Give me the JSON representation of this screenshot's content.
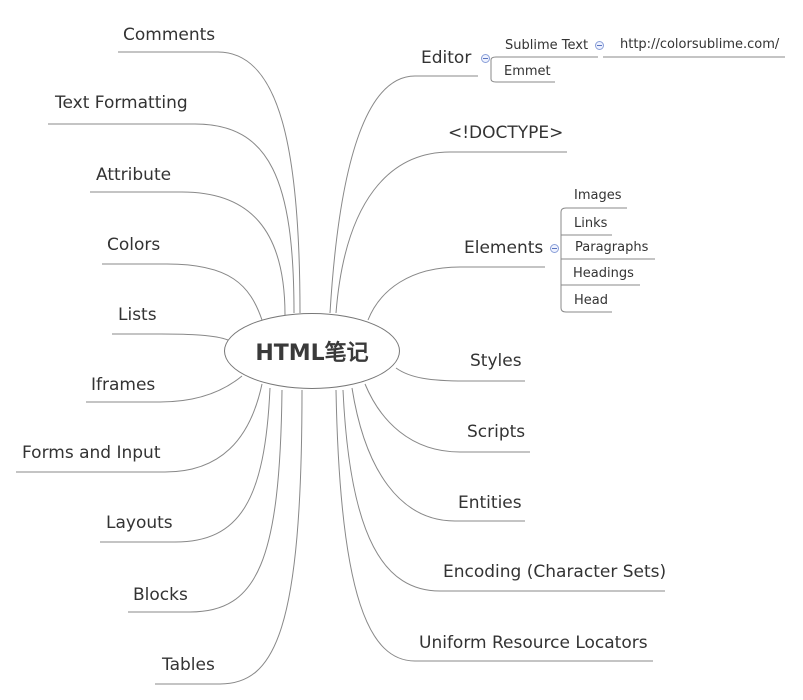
{
  "root": {
    "label": "HTML笔记"
  },
  "left_branches": [
    {
      "label": "Comments"
    },
    {
      "label": "Text Formatting"
    },
    {
      "label": "Attribute"
    },
    {
      "label": "Colors"
    },
    {
      "label": "Lists"
    },
    {
      "label": "Iframes"
    },
    {
      "label": "Forms and Input"
    },
    {
      "label": "Layouts"
    },
    {
      "label": "Blocks"
    },
    {
      "label": "Tables"
    }
  ],
  "right_branches": [
    {
      "label": "Editor",
      "children": [
        {
          "label": "Sublime Text",
          "children": [
            {
              "label": "http://colorsublime.com/"
            }
          ]
        },
        {
          "label": "Emmet"
        }
      ]
    },
    {
      "label": "<!DOCTYPE>"
    },
    {
      "label": "Elements",
      "children": [
        {
          "label": "Images"
        },
        {
          "label": "Links"
        },
        {
          "label": "Paragraphs"
        },
        {
          "label": "Headings"
        },
        {
          "label": "Head"
        }
      ]
    },
    {
      "label": "Styles"
    },
    {
      "label": "Scripts"
    },
    {
      "label": "Entities"
    },
    {
      "label": "Encoding (Character Sets)"
    },
    {
      "label": "Uniform Resource Locators"
    }
  ]
}
